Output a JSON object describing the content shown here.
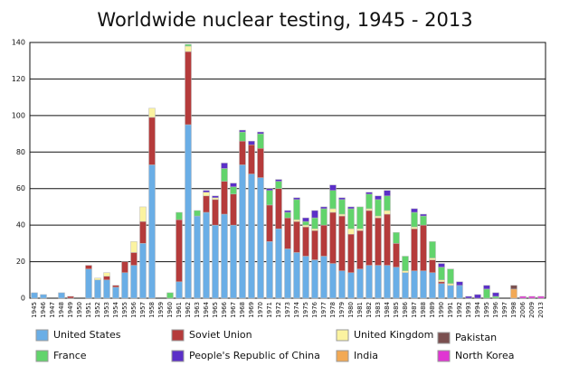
{
  "chart_data": {
    "type": "stacked-bar",
    "title": "Worldwide nuclear testing, 1945 - 2013",
    "categories": [
      "1945",
      "1946",
      "1947",
      "1948",
      "1949",
      "1950",
      "1951",
      "1952",
      "1953",
      "1954",
      "1955",
      "1956",
      "1957",
      "1958",
      "1959",
      "1960",
      "1961",
      "1962",
      "1963",
      "1964",
      "1965",
      "1966",
      "1967",
      "1968",
      "1969",
      "1970",
      "1971",
      "1972",
      "1973",
      "1974",
      "1975",
      "1976",
      "1977",
      "1978",
      "1979",
      "1980",
      "1981",
      "1982",
      "1983",
      "1984",
      "1985",
      "1986",
      "1987",
      "1988",
      "1989",
      "1990",
      "1991",
      "1992",
      "1993",
      "1994",
      "1995",
      "1996",
      "1997",
      "1998",
      "2006",
      "2009",
      "2013"
    ],
    "ylim": [
      0,
      140
    ],
    "yticks": [
      0,
      20,
      40,
      60,
      80,
      100,
      120,
      140
    ],
    "grid": true,
    "series": [
      {
        "name": "United States",
        "color": "#6aaee6",
        "values": [
          3,
          2,
          0,
          3,
          0,
          0,
          16,
          10,
          10,
          6,
          14,
          18,
          30,
          73,
          0,
          0,
          9,
          95,
          45,
          47,
          40,
          46,
          40,
          73,
          68,
          66,
          31,
          38,
          27,
          25,
          23,
          21,
          23,
          19,
          15,
          14,
          16,
          18,
          18,
          18,
          17,
          14,
          15,
          15,
          14,
          8,
          7,
          7,
          0,
          0,
          0,
          0,
          0,
          0,
          0,
          0,
          0
        ]
      },
      {
        "name": "Soviet Union",
        "color": "#b53b3b",
        "values": [
          0,
          0,
          0,
          0,
          1,
          0,
          2,
          0,
          2,
          1,
          6,
          7,
          12,
          26,
          0,
          0,
          34,
          40,
          0,
          9,
          14,
          18,
          17,
          13,
          16,
          16,
          20,
          22,
          17,
          17,
          16,
          16,
          17,
          28,
          30,
          21,
          21,
          30,
          26,
          28,
          13,
          0,
          23,
          25,
          7,
          1,
          0,
          0,
          0,
          0,
          0,
          0,
          0,
          0,
          0,
          0,
          0
        ]
      },
      {
        "name": "United Kingdom",
        "color": "#fbf3a0",
        "values": [
          0,
          0,
          0,
          0,
          0,
          0,
          0,
          1,
          2,
          0,
          0,
          6,
          8,
          5,
          0,
          0,
          0,
          3,
          0,
          2,
          1,
          0,
          0,
          0,
          0,
          0,
          0,
          0,
          0,
          1,
          1,
          1,
          0,
          2,
          1,
          3,
          1,
          1,
          1,
          2,
          0,
          1,
          1,
          0,
          1,
          1,
          1,
          0,
          0,
          0,
          0,
          0,
          0,
          0,
          0,
          0,
          0
        ]
      },
      {
        "name": "France",
        "color": "#62d46c",
        "values": [
          0,
          0,
          0,
          0,
          0,
          0,
          0,
          0,
          0,
          0,
          0,
          0,
          0,
          0,
          0,
          3,
          4,
          1,
          3,
          0,
          0,
          7,
          4,
          5,
          0,
          8,
          8,
          4,
          3,
          11,
          2,
          6,
          9,
          10,
          8,
          11,
          12,
          8,
          9,
          8,
          6,
          8,
          8,
          5,
          9,
          7,
          8,
          0,
          0,
          0,
          5,
          1,
          0,
          0,
          0,
          0,
          0
        ]
      },
      {
        "name": "People's Republic of China",
        "color": "#5b2fc8",
        "values": [
          0,
          0,
          0,
          0,
          0,
          0,
          0,
          0,
          0,
          0,
          0,
          0,
          0,
          0,
          0,
          0,
          0,
          0,
          0,
          1,
          1,
          3,
          2,
          1,
          2,
          1,
          1,
          1,
          1,
          1,
          2,
          4,
          1,
          3,
          1,
          1,
          0,
          1,
          2,
          3,
          0,
          0,
          2,
          1,
          0,
          2,
          0,
          2,
          1,
          2,
          2,
          2,
          0,
          0,
          0,
          0,
          0
        ]
      },
      {
        "name": "India",
        "color": "#f2a954",
        "values": [
          0,
          0,
          0,
          0,
          0,
          0,
          0,
          0,
          0,
          0,
          0,
          0,
          0,
          0,
          0,
          0,
          0,
          0,
          0,
          0,
          0,
          0,
          0,
          0,
          0,
          0,
          0,
          0,
          0,
          0,
          0,
          0,
          0,
          0,
          0,
          0,
          0,
          0,
          0,
          0,
          0,
          0,
          0,
          0,
          0,
          0,
          0,
          0,
          0,
          0,
          0,
          0,
          0,
          5,
          0,
          0,
          0
        ]
      },
      {
        "name": "Pakistan",
        "color": "#7a4f4f",
        "values": [
          0,
          0,
          0,
          0,
          0,
          0,
          0,
          0,
          0,
          0,
          0,
          0,
          0,
          0,
          0,
          0,
          0,
          0,
          0,
          0,
          0,
          0,
          0,
          0,
          0,
          0,
          0,
          0,
          0,
          0,
          0,
          0,
          0,
          0,
          0,
          0,
          0,
          0,
          0,
          0,
          0,
          0,
          0,
          0,
          0,
          0,
          0,
          0,
          0,
          0,
          0,
          0,
          0,
          2,
          0,
          0,
          0
        ]
      },
      {
        "name": "North Korea",
        "color": "#e035d2",
        "values": [
          0,
          0,
          0,
          0,
          0,
          0,
          0,
          0,
          0,
          0,
          0,
          0,
          0,
          0,
          0,
          0,
          0,
          0,
          0,
          0,
          0,
          0,
          0,
          0,
          0,
          0,
          0,
          0,
          0,
          0,
          0,
          0,
          0,
          0,
          0,
          0,
          0,
          0,
          0,
          0,
          0,
          0,
          0,
          0,
          0,
          0,
          0,
          0,
          0,
          0,
          0,
          0,
          0,
          0,
          1,
          1,
          1
        ]
      }
    ]
  }
}
